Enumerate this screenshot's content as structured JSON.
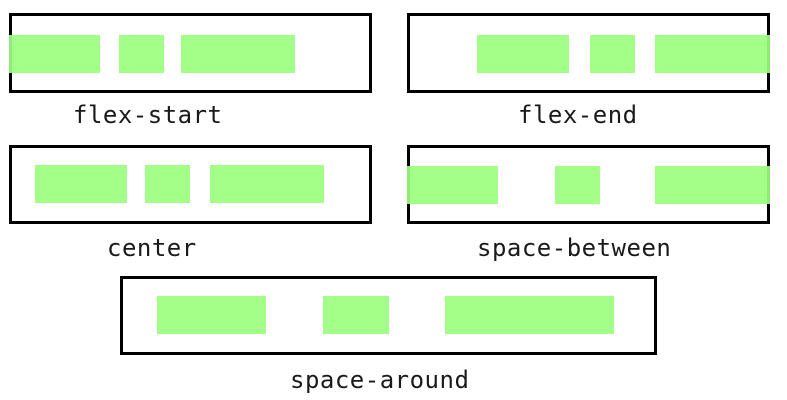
{
  "colors": {
    "item_fill": "#9cff7f",
    "border": "#000000",
    "background": "#ffffff"
  },
  "examples": [
    {
      "id": "flex-start",
      "label": "flex-start"
    },
    {
      "id": "flex-end",
      "label": "flex-end"
    },
    {
      "id": "center",
      "label": "center"
    },
    {
      "id": "space-between",
      "label": "space-between"
    },
    {
      "id": "space-around",
      "label": "space-around"
    }
  ]
}
